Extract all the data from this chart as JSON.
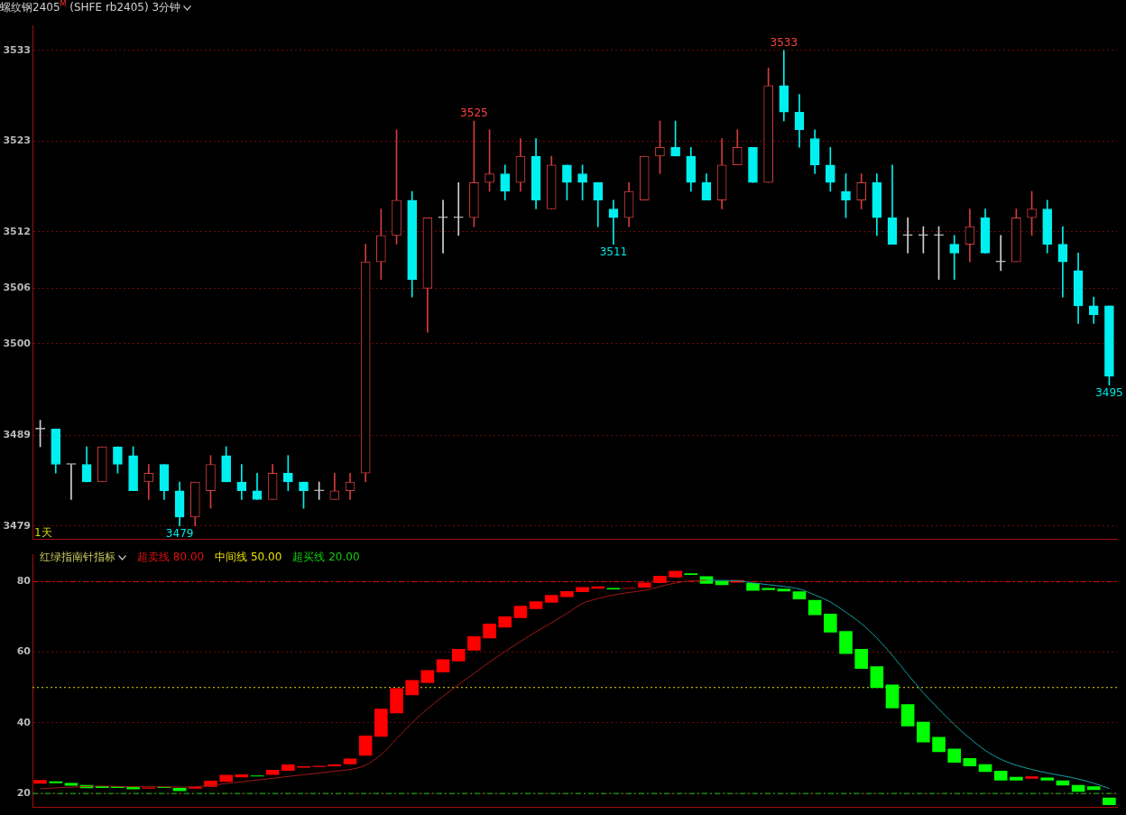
{
  "chart_data": [
    {
      "type": "candlestick",
      "title": "螺纹钢2405$^{M}$ (SHFE rb2405)  3分钟",
      "categories": [
        null,
        null,
        null,
        null,
        null,
        null,
        null,
        null,
        null,
        null,
        null,
        null,
        null,
        null,
        null,
        null,
        null,
        null,
        null,
        null,
        null,
        null,
        null,
        null,
        null,
        null,
        null,
        null,
        null,
        null,
        null,
        null,
        null,
        null,
        null,
        null,
        null,
        null,
        null,
        null,
        null,
        null,
        null,
        null,
        null,
        null,
        null,
        null,
        null,
        null,
        null,
        null,
        null,
        null,
        null,
        null,
        null,
        null,
        null,
        null,
        null,
        null,
        null,
        null,
        null,
        null,
        null,
        null,
        null,
        null
      ],
      "ohlc": [
        [
          3490,
          3491,
          3488,
          3490
        ],
        [
          3490,
          3490,
          3485,
          3486
        ],
        [
          3486,
          3486,
          3482,
          3486
        ],
        [
          3486,
          3488,
          3484,
          3484
        ],
        [
          3484,
          3488,
          3484,
          3488
        ],
        [
          3488,
          3488,
          3485,
          3486
        ],
        [
          3487,
          3488,
          3483,
          3483
        ],
        [
          3484,
          3486,
          3482,
          3485
        ],
        [
          3486,
          3486,
          3482,
          3483
        ],
        [
          3483,
          3484,
          3479,
          3480
        ],
        [
          3480,
          3484,
          3479,
          3484
        ],
        [
          3483,
          3487,
          3481,
          3486
        ],
        [
          3487,
          3488,
          3484,
          3484
        ],
        [
          3484,
          3486,
          3482,
          3483
        ],
        [
          3483,
          3485,
          3482,
          3482
        ],
        [
          3482,
          3486,
          3482,
          3485
        ],
        [
          3485,
          3487,
          3483,
          3484
        ],
        [
          3484,
          3484,
          3481,
          3483
        ],
        [
          3483,
          3484,
          3482,
          3483
        ],
        [
          3482,
          3485,
          3482,
          3483
        ],
        [
          3483,
          3485,
          3482,
          3484
        ],
        [
          3485,
          3511,
          3484,
          3509
        ],
        [
          3509,
          3515,
          3507,
          3512
        ],
        [
          3512,
          3524,
          3511,
          3516
        ],
        [
          3516,
          3517,
          3505,
          3507
        ],
        [
          3506,
          3514,
          3501,
          3514
        ],
        [
          3514,
          3516,
          3510,
          3514
        ],
        [
          3514,
          3518,
          3512,
          3514
        ],
        [
          3514,
          3525,
          3513,
          3518
        ],
        [
          3518,
          3524,
          3517,
          3519
        ],
        [
          3519,
          3520,
          3516,
          3517
        ],
        [
          3518,
          3523,
          3517,
          3521
        ],
        [
          3521,
          3523,
          3515,
          3516
        ],
        [
          3515,
          3521,
          3515,
          3520
        ],
        [
          3520,
          3520,
          3516,
          3518
        ],
        [
          3519,
          3520,
          3516,
          3518
        ],
        [
          3518,
          3518,
          3513,
          3516
        ],
        [
          3515,
          3516,
          3511,
          3514
        ],
        [
          3514,
          3518,
          3513,
          3517
        ],
        [
          3516,
          3521,
          3516,
          3521
        ],
        [
          3521,
          3525,
          3519,
          3522
        ],
        [
          3522,
          3525,
          3521,
          3521
        ],
        [
          3521,
          3522,
          3517,
          3518
        ],
        [
          3518,
          3519,
          3516,
          3516
        ],
        [
          3516,
          3523,
          3515,
          3520
        ],
        [
          3520,
          3524,
          3520,
          3522
        ],
        [
          3522,
          3522,
          3518,
          3518
        ],
        [
          3518,
          3531,
          3518,
          3529
        ],
        [
          3529,
          3533,
          3525,
          3526
        ],
        [
          3526,
          3528,
          3522,
          3524
        ],
        [
          3523,
          3524,
          3519,
          3520
        ],
        [
          3520,
          3522,
          3517,
          3518
        ],
        [
          3517,
          3519,
          3514,
          3516
        ],
        [
          3516,
          3519,
          3515,
          3518
        ],
        [
          3518,
          3519,
          3512,
          3514
        ],
        [
          3514,
          3520,
          3511,
          3511
        ],
        [
          3512,
          3514,
          3510,
          3512
        ],
        [
          3512,
          3513,
          3510,
          3512
        ],
        [
          3512,
          3513,
          3507,
          3512
        ],
        [
          3511,
          3512,
          3507,
          3510
        ],
        [
          3511,
          3515,
          3509,
          3513
        ],
        [
          3514,
          3515,
          3510,
          3510
        ],
        [
          3509,
          3512,
          3508,
          3509
        ],
        [
          3509,
          3515,
          3509,
          3514
        ],
        [
          3514,
          3517,
          3512,
          3515
        ],
        [
          3515,
          3516,
          3510,
          3511
        ],
        [
          3511,
          3513,
          3505,
          3509
        ],
        [
          3508,
          3510,
          3502,
          3504
        ],
        [
          3504,
          3505,
          3502,
          3503
        ],
        [
          3504,
          3504,
          3495,
          3496
        ]
      ],
      "colors": [
        "#d0d0d0",
        "#00f0f0",
        "#d0d0d0",
        "#00f0f0",
        "#d23c3c",
        "#00f0f0",
        "#00f0f0",
        "#d23c3c",
        "#00f0f0",
        "#00f0f0",
        "#d23c3c",
        "#d23c3c",
        "#00f0f0",
        "#00f0f0",
        "#00f0f0",
        "#d23c3c",
        "#00f0f0",
        "#00f0f0",
        "#d0d0d0",
        "#d23c3c",
        "#d23c3c",
        "#d23c3c",
        "#d23c3c",
        "#d23c3c",
        "#00f0f0",
        "#d23c3c",
        "#d0d0d0",
        "#d0d0d0",
        "#d23c3c",
        "#d23c3c",
        "#00f0f0",
        "#d23c3c",
        "#00f0f0",
        "#d23c3c",
        "#00f0f0",
        "#00f0f0",
        "#00f0f0",
        "#00f0f0",
        "#d23c3c",
        "#d23c3c",
        "#d23c3c",
        "#00f0f0",
        "#00f0f0",
        "#00f0f0",
        "#d23c3c",
        "#d23c3c",
        "#00f0f0",
        "#d23c3c",
        "#00f0f0",
        "#00f0f0",
        "#00f0f0",
        "#00f0f0",
        "#00f0f0",
        "#d23c3c",
        "#00f0f0",
        "#00f0f0",
        "#d0d0d0",
        "#d0d0d0",
        "#d0d0d0",
        "#00f0f0",
        "#d23c3c",
        "#00f0f0",
        "#d0d0d0",
        "#d23c3c",
        "#d23c3c",
        "#00f0f0",
        "#00f0f0",
        "#00f0f0",
        "#00f0f0",
        "#00f0f0"
      ],
      "ylim": [
        3477.5,
        3535.8
      ],
      "yticks": [
        3533,
        {
          "value": 3522.7,
          "label": "3523"
        },
        {
          "value": 3512.4,
          "label": "3512"
        },
        3506,
        {
          "value": 3499.7,
          "label": "3500"
        },
        {
          "value": 3489.3,
          "label": "3489"
        },
        3479
      ],
      "grid": "y",
      "tick_labels": "y",
      "annotations": [
        {
          "text": "3533",
          "y": 3533
        },
        {
          "text": "3525",
          "y": 3525
        },
        {
          "text": "3511",
          "y": 3511
        },
        {
          "text": "3479",
          "y": 3479
        },
        {
          "text": "3495",
          "y": 3495
        },
        "1天"
      ]
    },
    {
      "type": "bar",
      "title": "红绿指南针指标",
      "categories": [
        null,
        null,
        null,
        null,
        null,
        null,
        null,
        null,
        null,
        null,
        null,
        null,
        null,
        null,
        null,
        null,
        null,
        null,
        null,
        null,
        null,
        null,
        null,
        null,
        null,
        null,
        null,
        null,
        null,
        null,
        null,
        null,
        null,
        null,
        null,
        null,
        null,
        null,
        null,
        null,
        null,
        null,
        null,
        null,
        null,
        null,
        null,
        null,
        null,
        null,
        null,
        null,
        null,
        null,
        null,
        null,
        null,
        null,
        null,
        null,
        null,
        null,
        null,
        null,
        null,
        null,
        null,
        null,
        null,
        null
      ],
      "series": [
        {
          "type": "bar",
          "base": [
            22.8,
            22.9,
            22.2,
            21.5,
            21.6,
            21.6,
            21.2,
            21.4,
            21.6,
            20.7,
            21.4,
            21.9,
            23.3,
            24.6,
            24.8,
            25.3,
            26.4,
            27.3,
            27.5,
            27.7,
            28.3,
            30.7,
            36.1,
            42.7,
            47.8,
            51.3,
            54.3,
            57.4,
            60.5,
            63.9,
            67.0,
            69.7,
            72.2,
            74.0,
            75.6,
            77.0,
            78.0,
            77.8,
            78.0,
            78.3,
            79.6,
            81.2,
            81.9,
            79.4,
            79.0,
            79.7,
            77.4,
            77.6,
            77.2,
            75.0,
            70.5,
            65.6,
            59.5,
            55.3,
            49.9,
            44.1,
            39.0,
            34.5,
            31.7,
            28.7,
            27.7,
            26.1,
            23.7,
            23.7,
            24.2,
            23.7,
            22.3,
            20.5,
            21.0,
            16.7
          ],
          "values": [
            1.0,
            0.5,
            0.8,
            0.9,
            0.5,
            0.4,
            0.7,
            0.3,
            0.3,
            0.9,
            0.5,
            1.7,
            2.0,
            0.8,
            0.3,
            1.4,
            1.8,
            0.4,
            0.3,
            0.5,
            1.6,
            5.7,
            7.9,
            7.1,
            4.3,
            3.6,
            3.7,
            3.5,
            4.0,
            4.2,
            3.1,
            3.4,
            2.2,
            2.2,
            1.7,
            1.4,
            0.6,
            0.4,
            0.2,
            1.4,
            2.0,
            1.8,
            0.4,
            2.1,
            1.2,
            0.7,
            2.2,
            0.6,
            0.8,
            2.2,
            4.3,
            5.3,
            6.5,
            5.6,
            6.1,
            6.7,
            6.3,
            5.8,
            4.3,
            4.0,
            2.3,
            2.2,
            2.7,
            1.0,
            0.6,
            0.8,
            1.4,
            1.9,
            1.0,
            2.1
          ],
          "colors": [
            "#ff0000",
            "#00ff00",
            "#00ff00",
            "#00ff00",
            "#00ff00",
            "#00ff00",
            "#00ff00",
            "#ff0000",
            "#00ff00",
            "#00ff00",
            "#ff0000",
            "#ff0000",
            "#ff0000",
            "#ff0000",
            "#00ff00",
            "#ff0000",
            "#ff0000",
            "#ff0000",
            "#ff0000",
            "#ff0000",
            "#ff0000",
            "#ff0000",
            "#ff0000",
            "#ff0000",
            "#ff0000",
            "#ff0000",
            "#ff0000",
            "#ff0000",
            "#ff0000",
            "#ff0000",
            "#ff0000",
            "#ff0000",
            "#ff0000",
            "#ff0000",
            "#ff0000",
            "#ff0000",
            "#ff0000",
            "#00ff00",
            "#ff0000",
            "#ff0000",
            "#ff0000",
            "#ff0000",
            "#00ff00",
            "#00ff00",
            "#00ff00",
            "#ff0000",
            "#00ff00",
            "#00ff00",
            "#00ff00",
            "#00ff00",
            "#00ff00",
            "#00ff00",
            "#00ff00",
            "#00ff00",
            "#00ff00",
            "#00ff00",
            "#00ff00",
            "#00ff00",
            "#00ff00",
            "#00ff00",
            "#00ff00",
            "#00ff00",
            "#00ff00",
            "#00ff00",
            "#ff0000",
            "#00ff00",
            "#00ff00",
            "#00ff00",
            "#00ff00",
            "#00ff00"
          ]
        },
        {
          "type": "line",
          "color": "#a01818",
          "values": [
            21.3,
            21.6,
            21.8,
            22.0,
            22.1,
            22.0,
            21.9,
            21.9,
            21.9,
            21.8,
            21.9,
            22.3,
            22.8,
            23.3,
            23.8,
            24.3,
            24.8,
            25.3,
            25.8,
            26.3,
            26.8,
            28.0,
            31.0,
            35.5,
            40.0,
            44.0,
            47.5,
            50.8,
            54.0,
            57.2,
            60.2,
            63.0,
            65.8,
            68.3,
            71.0,
            73.8,
            75.2,
            76.2,
            76.9,
            77.5,
            78.6,
            79.6,
            80.2,
            80.4,
            null,
            null,
            null,
            null,
            null,
            null,
            null,
            null,
            null,
            null,
            null,
            null,
            null,
            null,
            null,
            null,
            null,
            null,
            null,
            null,
            null,
            null,
            null,
            null,
            null,
            null
          ]
        },
        {
          "type": "line",
          "color": "#12a0a0",
          "values": [
            null,
            null,
            null,
            null,
            null,
            null,
            null,
            null,
            null,
            null,
            null,
            null,
            null,
            null,
            null,
            null,
            null,
            null,
            null,
            null,
            null,
            null,
            null,
            null,
            null,
            null,
            null,
            null,
            null,
            null,
            null,
            null,
            null,
            null,
            null,
            null,
            null,
            null,
            null,
            null,
            null,
            null,
            null,
            80.4,
            80.3,
            80.2,
            79.6,
            79.1,
            78.6,
            77.9,
            76.2,
            74.2,
            71.3,
            68.1,
            64.0,
            59.1,
            53.7,
            48.5,
            43.9,
            39.5,
            35.6,
            32.2,
            29.7,
            28.0,
            26.8,
            25.8,
            25.0,
            24.1,
            22.9,
            21.4
          ]
        }
      ],
      "ylim": [
        16.1,
        87.6
      ],
      "yticks": [
        20,
        40,
        60,
        80
      ],
      "grid": "y",
      "tick_labels": "y",
      "ref_lines": [
        {
          "axis": "y",
          "value": 80,
          "label": "超卖线 80.00",
          "color": "#e01010",
          "line_style": "dashed"
        },
        {
          "axis": "y",
          "value": 50,
          "label": "中间线 50.00",
          "color": "#e8e000",
          "line_style": "dotted"
        },
        {
          "axis": "y",
          "value": 20,
          "label": "超买线 20.00",
          "color": "#10d010",
          "line_style": "dashed"
        }
      ]
    }
  ]
}
